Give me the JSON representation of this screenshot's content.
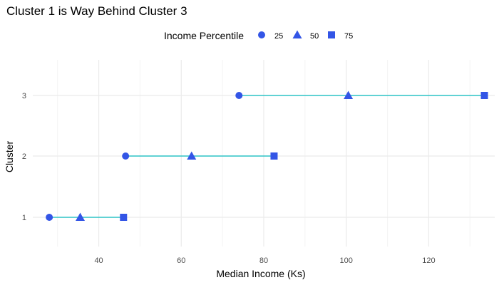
{
  "chart_data": {
    "type": "dumbbell",
    "title": "Cluster 1 is Way Behind Cluster 3",
    "xlabel": "Median Income (Ks)",
    "ylabel": "Cluster",
    "legend": {
      "title": "Income Percentile",
      "position": "top",
      "entries": [
        {
          "label": "25",
          "shape": "circle"
        },
        {
          "label": "50",
          "shape": "triangle"
        },
        {
          "label": "75",
          "shape": "square"
        }
      ]
    },
    "xlim": [
      24,
      136
    ],
    "x_ticks": [
      40,
      60,
      80,
      100,
      120
    ],
    "categories": [
      "1",
      "2",
      "3"
    ],
    "series": [
      {
        "name": "25",
        "values": [
          28,
          46.5,
          74
        ]
      },
      {
        "name": "50",
        "values": [
          35.5,
          62.5,
          100.5
        ]
      },
      {
        "name": "75",
        "values": [
          46,
          82.5,
          133.5
        ]
      }
    ],
    "grid": true,
    "colors": {
      "marker": "#3355e6",
      "segment": "#2ec4c8",
      "grid_major": "#ebebeb",
      "grid_minor": "#f4f4f4",
      "text": "#000000",
      "tick_text": "#4d4d4d"
    }
  }
}
